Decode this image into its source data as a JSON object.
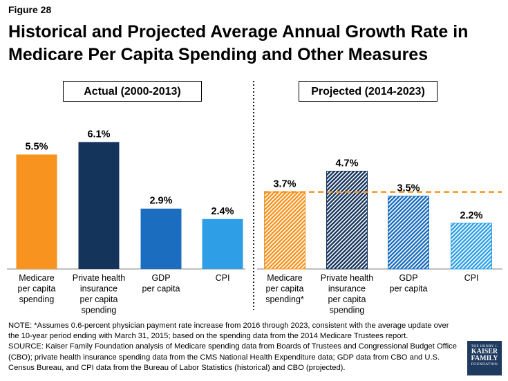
{
  "figure_label": "Figure 28",
  "title_lines": [
    "Historical and Projected Average Annual Growth Rate in",
    "Medicare Per Capita Spending and Other Measures"
  ],
  "panels": {
    "actual": "Actual (2000-2013)",
    "projected": "Projected (2014-2023)"
  },
  "colors": {
    "medicare": "#f7931e",
    "private": "#15345c",
    "gdp": "#1a6dbf",
    "cpi": "#2e9fe6",
    "divider": "#222222",
    "reference": "#f7931e"
  },
  "chart_data": {
    "type": "bar",
    "title": "Historical and Projected Average Annual Growth Rate in Medicare Per Capita Spending and Other Measures",
    "xlabel": "",
    "ylabel": "",
    "ylim": [
      0,
      7
    ],
    "groups": [
      {
        "name": "Actual (2000-2013)",
        "pattern": "solid",
        "categories": [
          [
            "Medicare",
            "per capita",
            "spending"
          ],
          [
            "Private health",
            "insurance",
            "per capita",
            "spending"
          ],
          [
            "GDP",
            "per capita"
          ],
          [
            "CPI"
          ]
        ],
        "values": [
          5.5,
          6.1,
          2.9,
          2.4
        ],
        "labels": [
          "5.5%",
          "6.1%",
          "2.9%",
          "2.4%"
        ]
      },
      {
        "name": "Projected (2014-2023)",
        "pattern": "hatched",
        "categories": [
          [
            "Medicare",
            "per capita",
            "spending*"
          ],
          [
            "Private health",
            "insurance",
            "per capita",
            "spending"
          ],
          [
            "GDP",
            "per capita"
          ],
          [
            "CPI"
          ]
        ],
        "values": [
          3.7,
          4.7,
          3.5,
          2.2
        ],
        "labels": [
          "3.7%",
          "4.7%",
          "3.5%",
          "2.2%"
        ]
      }
    ],
    "reference_line": {
      "value": 3.7,
      "style": "dashed",
      "note": "Projected Medicare level"
    }
  },
  "note_lines": [
    "NOTE: *Assumes 0.6-percent physician payment rate increase from 2016 through 2023, consistent with the average update over",
    "the 10-year period ending with March 31, 2015; based on the spending data from the 2014 Medicare Trustees report.",
    "SOURCE: Kaiser Family Foundation analysis of Medicare spending data from Boards of Trustees and Congressional Budget Office",
    "(CBO); private health insurance spending data from the CMS National Health Expenditure data; GDP data from CBO and U.S.",
    "Census Bureau, and CPI data from the Bureau of Labor Statistics (historical) and CBO (projected)."
  ],
  "logo": {
    "line1": "THE HENRY J.",
    "line2": "KAISER",
    "line3": "FAMILY",
    "line4": "FOUNDATION"
  }
}
